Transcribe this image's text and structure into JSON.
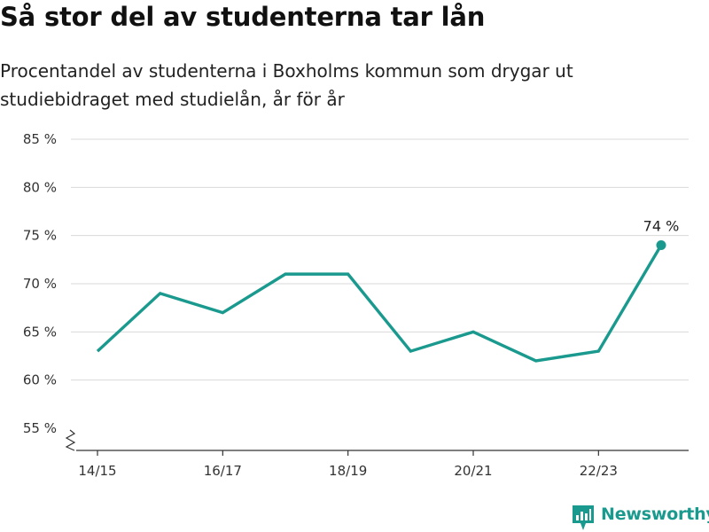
{
  "title": "Så stor del av studenterna tar lån",
  "subtitle": "Procentandel av studenterna i Boxholms kommun som drygar ut studiebidraget med studielån, år för år",
  "brand": {
    "name": "Newsworthy",
    "color": "#1a9a8e"
  },
  "colors": {
    "line": "#1a9a8e",
    "grid": "#d9d9d9",
    "axis": "#333333"
  },
  "chart_data": {
    "type": "line",
    "title": "",
    "xlabel": "",
    "ylabel": "",
    "x": [
      "14/15",
      "15/16",
      "16/17",
      "17/18",
      "18/19",
      "19/20",
      "20/21",
      "21/22",
      "22/23",
      "23/24"
    ],
    "x_tick_labels": [
      "14/15",
      "16/17",
      "18/19",
      "20/21",
      "22/23"
    ],
    "series": [
      {
        "values": [
          63,
          69,
          67,
          71,
          71,
          63,
          65,
          62,
          63,
          74
        ]
      }
    ],
    "y_ticks": [
      55,
      60,
      65,
      70,
      75,
      80,
      85
    ],
    "y_tick_labels": [
      "55 %",
      "60 %",
      "65 %",
      "70 %",
      "75 %",
      "80 %",
      "85 %"
    ],
    "ylim": [
      55,
      85
    ],
    "y_axis_break": true,
    "grid": true,
    "legend": "none",
    "annotations": [
      {
        "x": "23/24",
        "y": 74,
        "text": "74 %"
      }
    ]
  }
}
